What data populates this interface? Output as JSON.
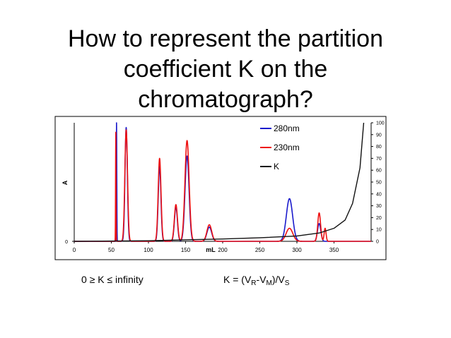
{
  "slide": {
    "title_lines": [
      "How to represent the partition",
      "coefficient K on the",
      "chromatograph?"
    ],
    "range_text": "0 ≥ K ≤ infinity",
    "formula": {
      "prefix": "K = (V",
      "sub_r": "R",
      "dash": "-V",
      "sub_m": "M",
      "close": ")/V",
      "sub_s": "S"
    }
  },
  "chart_data": {
    "type": "line",
    "title": "",
    "xlabel": "mL",
    "ylabel": "A",
    "xlim": [
      0,
      400
    ],
    "x_ticks": [
      0,
      50,
      100,
      150,
      200,
      250,
      300,
      350
    ],
    "y_left_ticks": [
      0
    ],
    "y_right_ticks": [
      0,
      10,
      20,
      30,
      40,
      50,
      60,
      70,
      80,
      90,
      100
    ],
    "legend_position": "top-right",
    "series": [
      {
        "name": "280nm",
        "color": "#1a1acc",
        "axis": "left",
        "baseline": 0,
        "peaks": [
          {
            "x": 57,
            "height": 100,
            "width": 0.35
          },
          {
            "x": 70,
            "height": 96,
            "width": 1.6
          },
          {
            "x": 115,
            "height": 63,
            "width": 1.8
          },
          {
            "x": 137,
            "height": 29,
            "width": 2.0
          },
          {
            "x": 152,
            "height": 72,
            "width": 2.7
          },
          {
            "x": 182,
            "height": 12,
            "width": 3.2
          },
          {
            "x": 290,
            "height": 36,
            "width": 4.2
          },
          {
            "x": 330,
            "height": 15,
            "width": 2.2
          }
        ]
      },
      {
        "name": "230nm",
        "color": "#ee1111",
        "axis": "left",
        "baseline": 0,
        "peaks": [
          {
            "x": 56,
            "height": 92,
            "width": 0.3
          },
          {
            "x": 70,
            "height": 94,
            "width": 1.8
          },
          {
            "x": 115,
            "height": 70,
            "width": 1.9
          },
          {
            "x": 137,
            "height": 31,
            "width": 2.1
          },
          {
            "x": 152,
            "height": 85,
            "width": 2.8
          },
          {
            "x": 182,
            "height": 14,
            "width": 3.2
          },
          {
            "x": 290,
            "height": 11,
            "width": 4.5
          },
          {
            "x": 330,
            "height": 24,
            "width": 1.9
          },
          {
            "x": 338,
            "height": 11,
            "width": 1.3
          }
        ]
      },
      {
        "name": "K",
        "color": "#111111",
        "axis": "right",
        "shape": "exponential-rise",
        "x": [
          0,
          100,
          200,
          250,
          300,
          330,
          350,
          365,
          375,
          385,
          390
        ],
        "values": [
          0,
          0.5,
          2,
          3,
          4.5,
          7,
          11,
          18,
          32,
          62,
          100
        ]
      }
    ]
  }
}
